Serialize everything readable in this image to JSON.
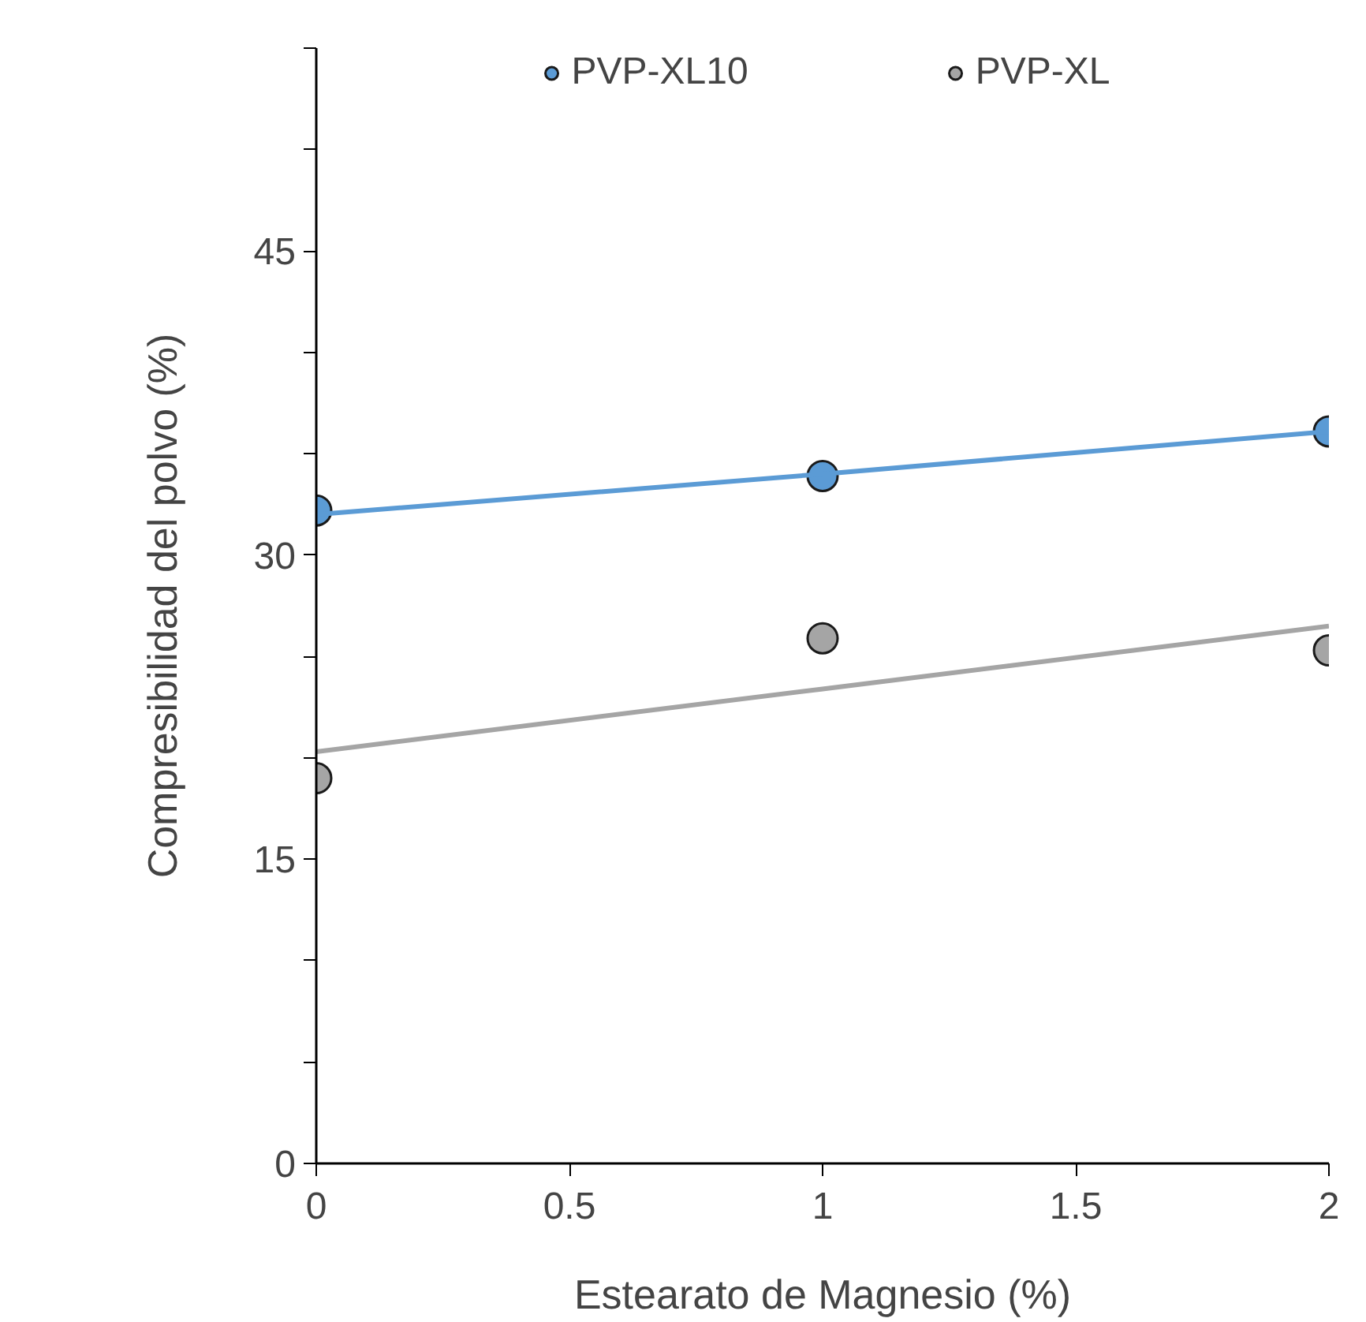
{
  "chart_data": {
    "type": "scatter",
    "xlabel": "Estearato de Magnesio (%)",
    "ylabel": "Compresibilidad del polvo (%)",
    "x": [
      0,
      1,
      2
    ],
    "series": [
      {
        "name": "PVP-XL10",
        "color": "#5b9bd5",
        "values": [
          32.2,
          33.9,
          36.1
        ]
      },
      {
        "name": "PVP-XL",
        "color": "#a5a5a5",
        "values": [
          19.0,
          25.9,
          25.3
        ]
      },
      {
        "type": "line",
        "marker": "none",
        "color": "#5b9bd5",
        "values": [
          32.0,
          34.0,
          36.1
        ]
      },
      {
        "type": "line",
        "marker": "none",
        "color": "#a5a5a5",
        "values": [
          20.3,
          23.4,
          26.5
        ]
      }
    ],
    "xlim": [
      0,
      2
    ],
    "xticks": [
      0,
      0.5,
      1,
      1.5,
      2
    ],
    "ylim": [
      0,
      55
    ],
    "yticks": [
      0,
      {
        "value": 5,
        "label": null
      },
      {
        "value": 10,
        "label": null
      },
      15,
      {
        "value": 20,
        "label": null
      },
      {
        "value": 25,
        "label": null
      },
      30,
      {
        "value": 35,
        "label": null
      },
      {
        "value": 40,
        "label": null
      },
      45,
      {
        "value": 50,
        "label": null
      },
      {
        "value": 55,
        "label": null
      }
    ],
    "marker": "circle",
    "grid": false,
    "legend": "top"
  }
}
